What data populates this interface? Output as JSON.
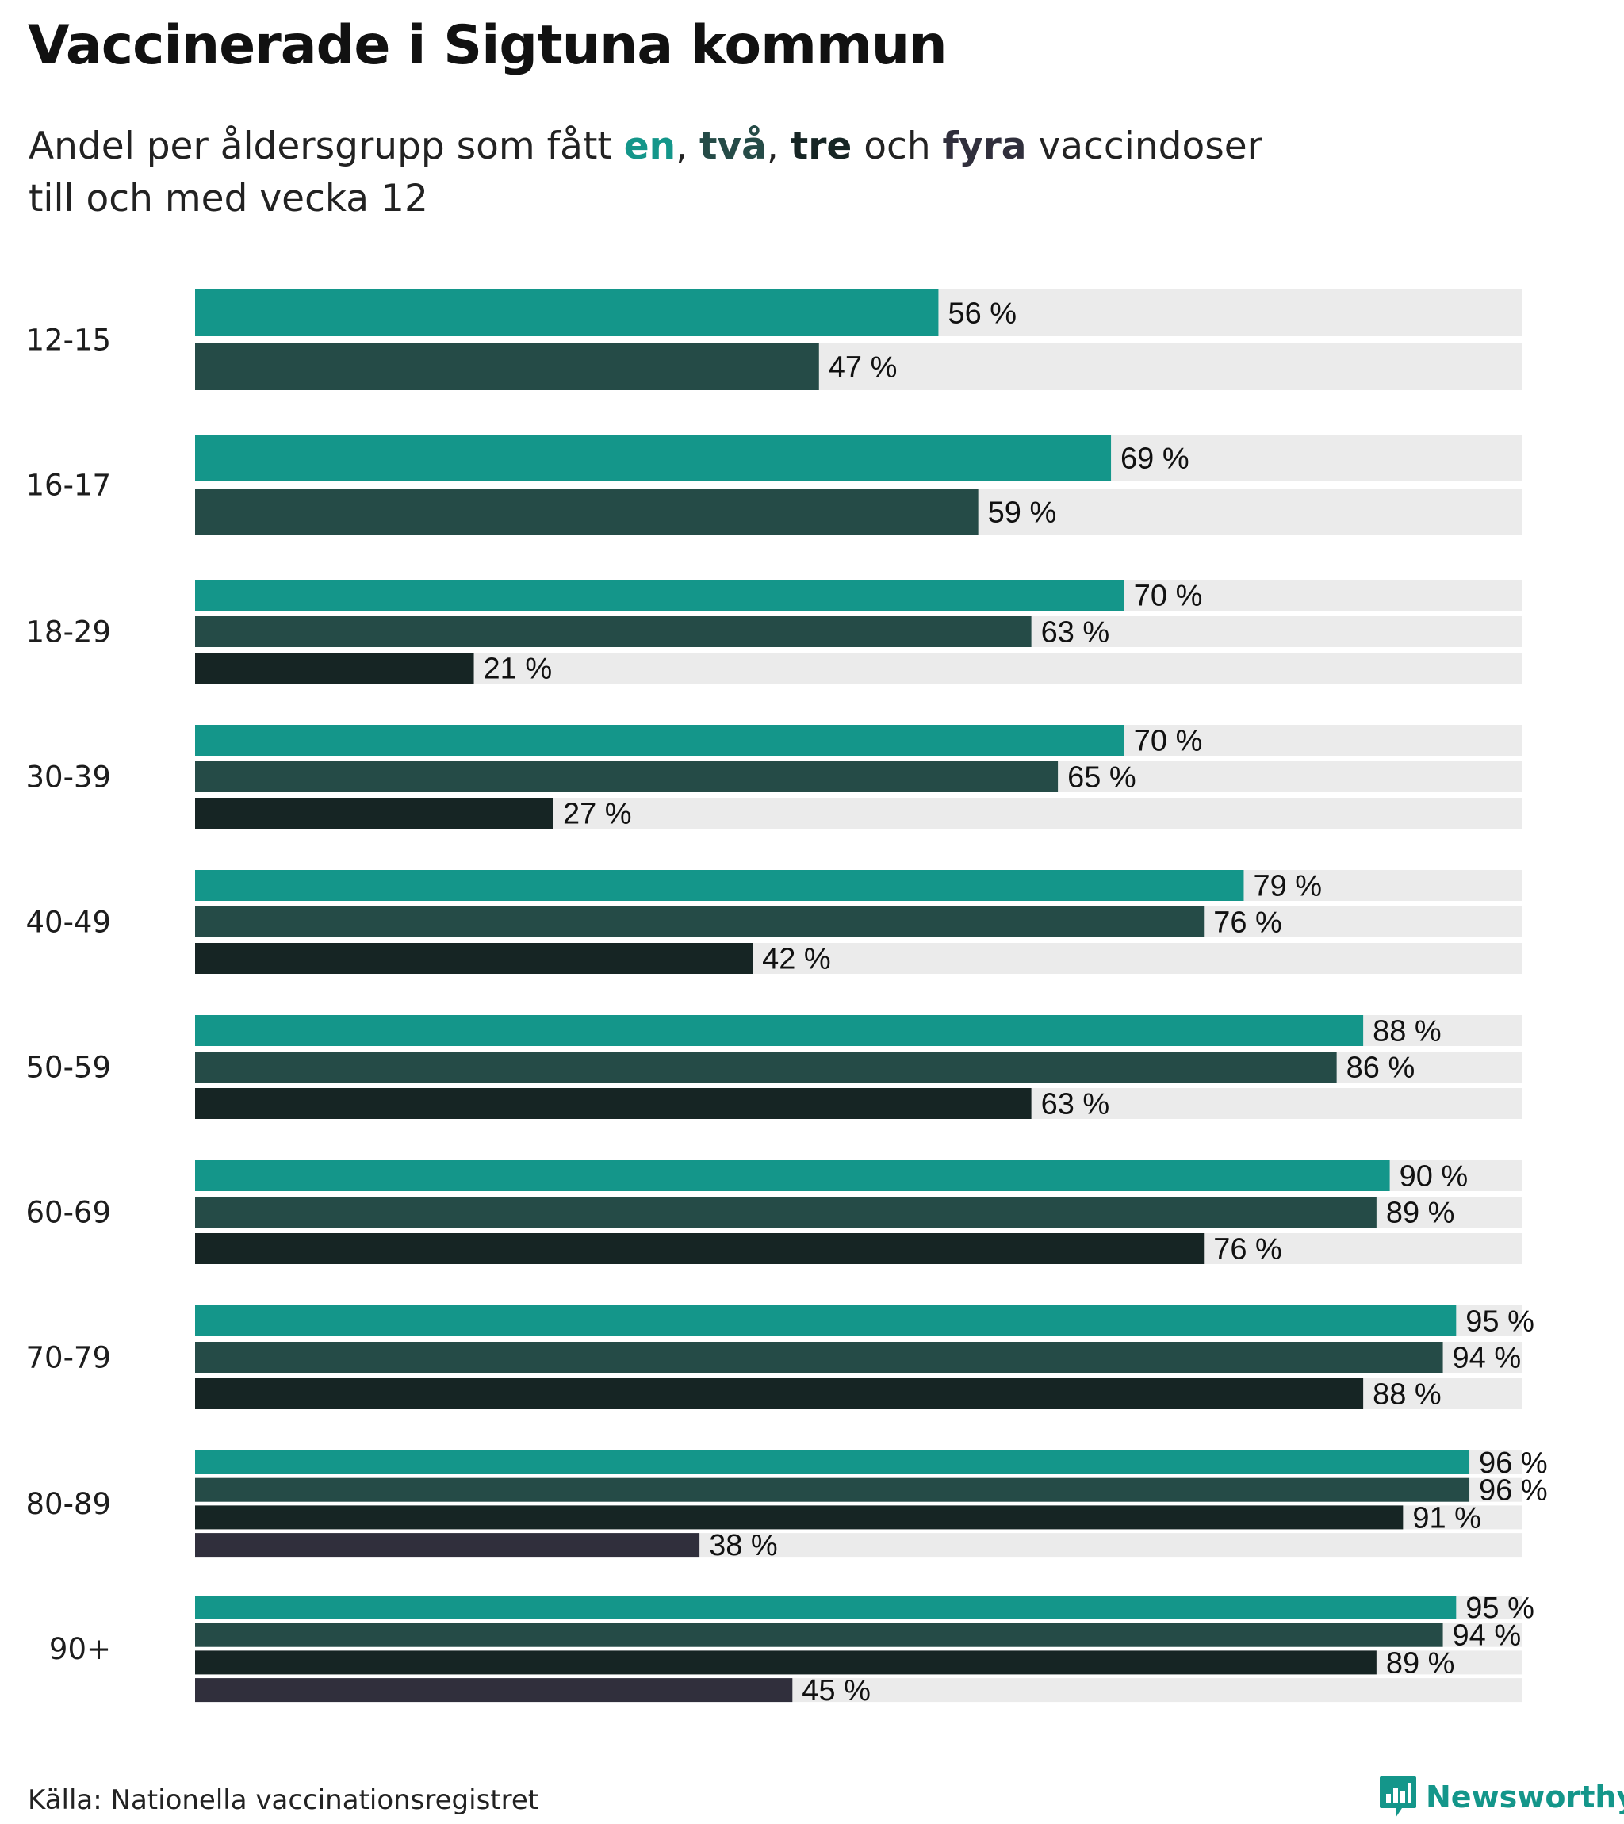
{
  "title": "Vaccinerade i Sigtuna kommun",
  "subtitle": {
    "prefix": "Andel per åldersgrupp som fått ",
    "dose1": "en",
    "sep1": ", ",
    "dose2": "två",
    "sep2": ", ",
    "dose3": "tre",
    "sep3": " och ",
    "dose4": "fyra",
    "suffix_line1": " vaccindoser",
    "line2": "till och med vecka 12"
  },
  "colors": {
    "dose1": "#14968a",
    "dose2": "#254b47",
    "dose3": "#162524",
    "dose4": "#302f3c",
    "track": "#ebebeb"
  },
  "chart_data": {
    "type": "bar",
    "orientation": "horizontal",
    "title": "Vaccinerade i Sigtuna kommun",
    "subtitle": "Andel per åldersgrupp som fått en, två, tre och fyra vaccindoser till och med vecka 12",
    "xlim": [
      0,
      100
    ],
    "unit": "%",
    "legend": "inline in subtitle",
    "categories": [
      "12-15",
      "16-17",
      "18-29",
      "30-39",
      "40-49",
      "50-59",
      "60-69",
      "70-79",
      "80-89",
      "90+"
    ],
    "series": [
      {
        "name": "en",
        "values": [
          56,
          69,
          70,
          70,
          79,
          88,
          90,
          95,
          96,
          95
        ]
      },
      {
        "name": "två",
        "values": [
          47,
          59,
          63,
          65,
          76,
          86,
          89,
          94,
          96,
          94
        ]
      },
      {
        "name": "tre",
        "values": [
          null,
          null,
          21,
          27,
          42,
          63,
          76,
          88,
          91,
          89
        ]
      },
      {
        "name": "fyra",
        "values": [
          null,
          null,
          null,
          null,
          null,
          null,
          null,
          null,
          38,
          45
        ]
      }
    ],
    "value_labels": [
      [
        "56 %",
        "47 %"
      ],
      [
        "69 %",
        "59 %"
      ],
      [
        "70 %",
        "63 %",
        "21 %"
      ],
      [
        "70 %",
        "65 %",
        "27 %"
      ],
      [
        "79 %",
        "76 %",
        "42 %"
      ],
      [
        "88 %",
        "86 %",
        "63 %"
      ],
      [
        "90 %",
        "89 %",
        "76 %"
      ],
      [
        "95 %",
        "94 %",
        "88 %"
      ],
      [
        "96 %",
        "96 %",
        "91 %",
        "38 %"
      ],
      [
        "95 %",
        "94 %",
        "89 %",
        "45 %"
      ]
    ]
  },
  "footer": {
    "source": "Källa: Nationella vaccinationsregistret",
    "brand": "Newsworthy",
    "brand_icon": "bar-chart-speech-bubble-icon"
  }
}
